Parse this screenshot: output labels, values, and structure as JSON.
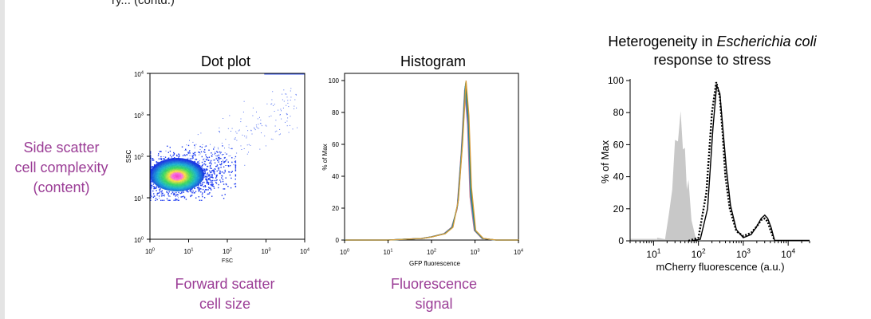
{
  "top_fragment": "ry... (contd.)",
  "side_caption": [
    "Side scatter",
    "cell complexity",
    "(content)"
  ],
  "colors": {
    "caption": "#9b3d96",
    "hist_gray": "#c8c8c8"
  },
  "chart_data": [
    {
      "type": "scatter",
      "title": "Dot plot",
      "xlabel": "FSC",
      "ylabel": "SSC",
      "xscale": "log",
      "yscale": "log",
      "xlim": [
        1,
        10000
      ],
      "ylim": [
        1,
        10000
      ],
      "xticks": [
        "10^0",
        "10^1",
        "10^2",
        "10^3",
        "10^4"
      ],
      "yticks": [
        "10^0",
        "10^1",
        "10^2",
        "10^3",
        "10^4"
      ],
      "density_center": {
        "x": 4,
        "y": 30
      },
      "caption": [
        "Forward scatter",
        "cell size"
      ]
    },
    {
      "type": "line",
      "title": "Histogram",
      "xlabel": "GFP fluorescence",
      "ylabel": "% of Max",
      "xscale": "log",
      "xlim": [
        1,
        10000
      ],
      "ylim": [
        0,
        100
      ],
      "xticks": [
        "10^0",
        "10^1",
        "10^2",
        "10^3",
        "10^4"
      ],
      "yticks": [
        0,
        20,
        40,
        60,
        80,
        100
      ],
      "peak_x": 600,
      "series_colors": [
        "#e07b7b",
        "#8a6bd1",
        "#3aa3a3",
        "#2f6fb0",
        "#1e8a4a",
        "#d89a3a"
      ],
      "x": [
        1,
        10,
        60,
        100,
        200,
        300,
        400,
        500,
        600,
        700,
        800,
        1000,
        1500,
        3000,
        10000
      ],
      "y": [
        0,
        0,
        1,
        2,
        4,
        8,
        22,
        58,
        97,
        75,
        30,
        6,
        1,
        0,
        0
      ],
      "caption": [
        "Fluorescence",
        "signal"
      ]
    },
    {
      "type": "area",
      "title": [
        "Heterogeneity in",
        "Escherichia coli",
        "response to stress"
      ],
      "xlabel": "mCherry fluorescence (a.u.)",
      "ylabel": "% of Max",
      "xscale": "log",
      "xlim": [
        3,
        30000
      ],
      "ylim": [
        0,
        100
      ],
      "xticks": [
        "10^1",
        "10^2",
        "10^3",
        "10^4"
      ],
      "yticks": [
        0,
        20,
        40,
        60,
        80,
        100
      ],
      "series": [
        {
          "style": "gray fill",
          "x": [
            12,
            18,
            22,
            26,
            30,
            35,
            40,
            45,
            50,
            55,
            60,
            70,
            80,
            90
          ],
          "y": [
            0,
            3,
            15,
            40,
            55,
            70,
            73,
            65,
            50,
            40,
            30,
            15,
            4,
            0
          ]
        },
        {
          "style": "dotted",
          "x": [
            60,
            100,
            150,
            200,
            250,
            300,
            350,
            400,
            500,
            700,
            1000,
            1500,
            2000,
            2500,
            3000,
            3500,
            4000,
            5000
          ],
          "y": [
            0,
            2,
            30,
            80,
            99,
            90,
            65,
            40,
            20,
            6,
            3,
            5,
            9,
            13,
            14,
            12,
            7,
            0
          ]
        },
        {
          "style": "solid",
          "x": [
            70,
            110,
            160,
            210,
            255,
            300,
            350,
            420,
            520,
            700,
            1000,
            1500,
            2000,
            2500,
            3000,
            3500,
            4200,
            5000
          ],
          "y": [
            0,
            1,
            20,
            70,
            97,
            92,
            70,
            45,
            22,
            7,
            2,
            4,
            9,
            14,
            16,
            14,
            8,
            0
          ]
        }
      ]
    }
  ]
}
